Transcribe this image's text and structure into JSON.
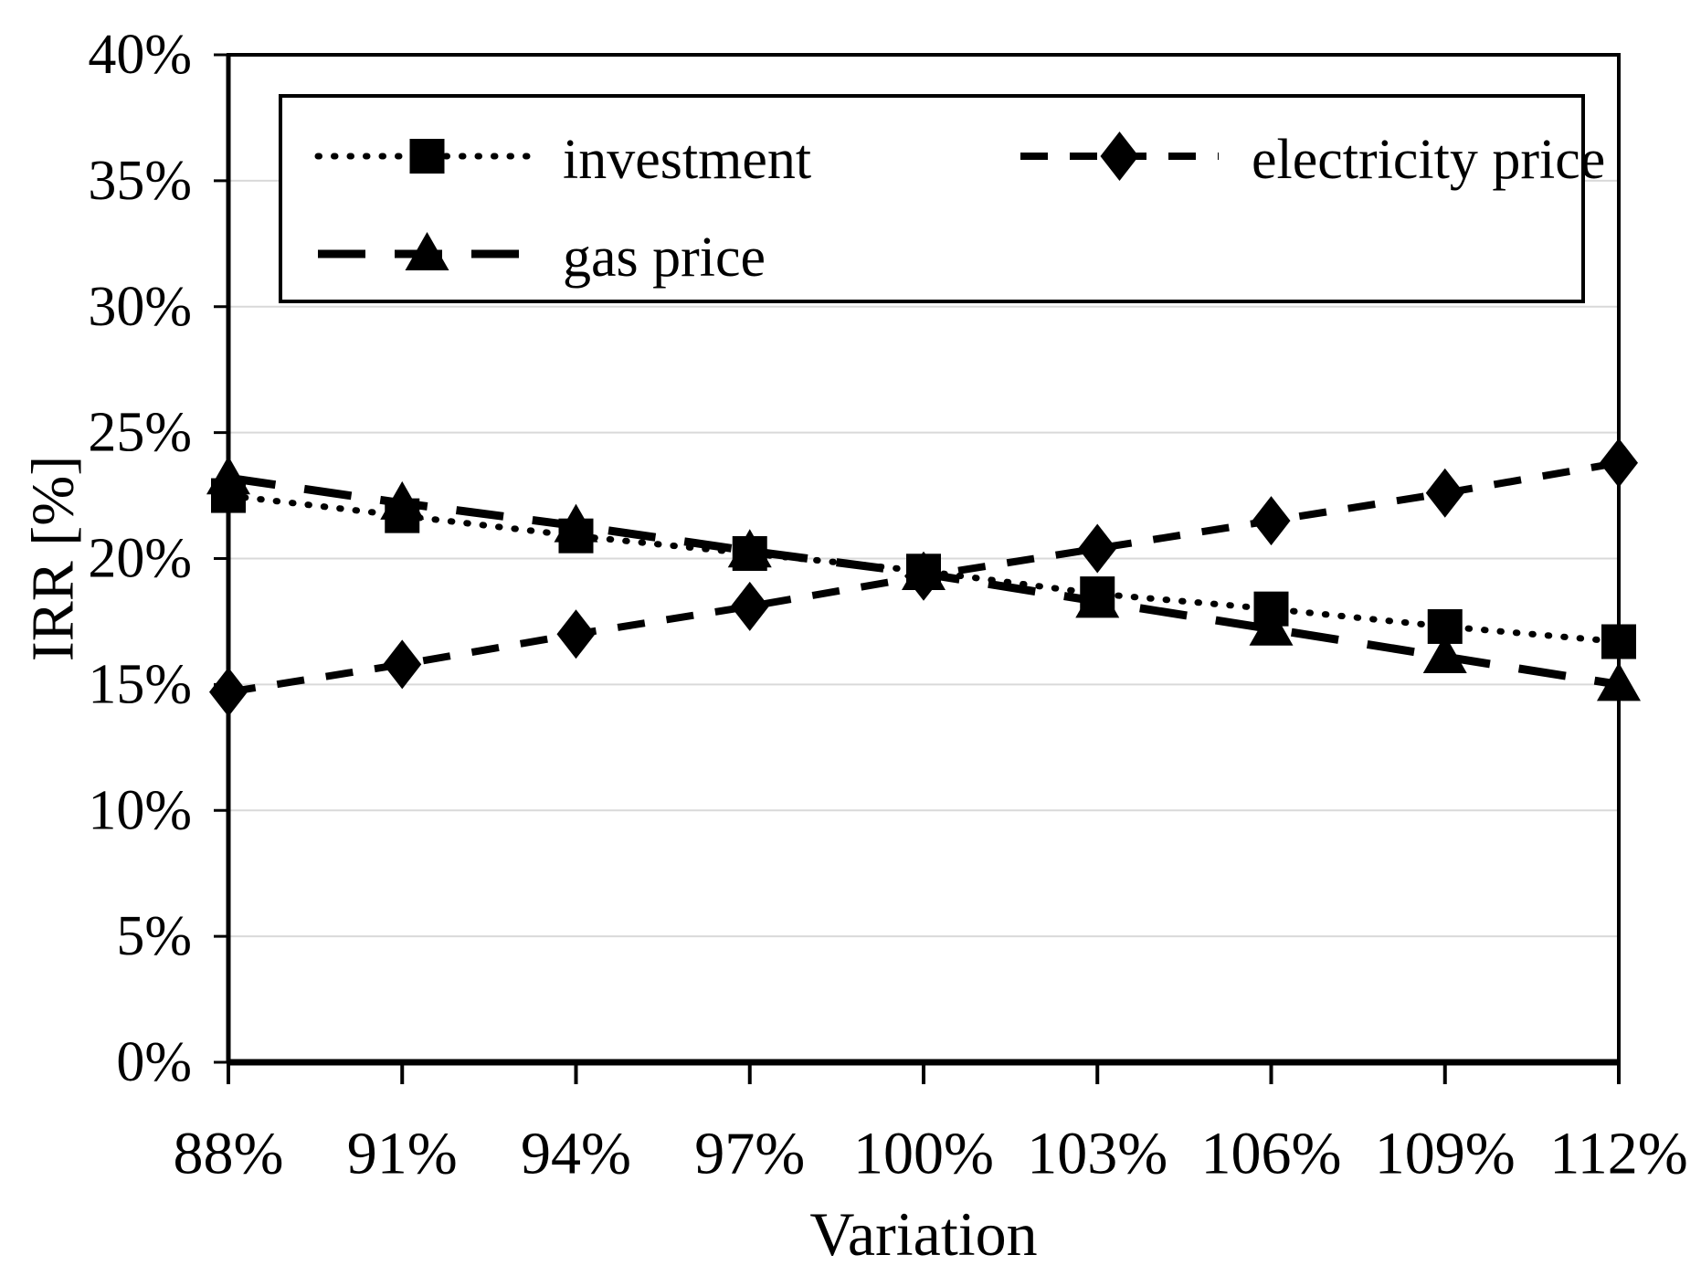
{
  "figure": {
    "background": "#ffffff",
    "description": "Sensitivity analysis line chart of IRR versus parameter variation"
  },
  "chart_data": {
    "type": "line",
    "title": "",
    "xlabel": "Variation",
    "ylabel": "IRR [%]",
    "categories": [
      "88%",
      "91%",
      "94%",
      "97%",
      "100%",
      "103%",
      "106%",
      "109%",
      "112%"
    ],
    "y_tick_labels": [
      "0%",
      "5%",
      "10%",
      "15%",
      "20%",
      "25%",
      "30%",
      "35%",
      "40%"
    ],
    "ylim": [
      0,
      40
    ],
    "y_tick_step": 5,
    "grid": "horizontal",
    "gridline_color": "#d9d9d9",
    "axis_color": "#000000",
    "legend_position": "top-inside-box",
    "legend_layout": [
      [
        "investment",
        "electricity price"
      ],
      [
        "gas price"
      ]
    ],
    "series": [
      {
        "name": "investment",
        "marker": "square",
        "line_style": "dotted",
        "color": "#000000",
        "values": [
          22.5,
          21.7,
          20.9,
          20.2,
          19.5,
          18.6,
          18.0,
          17.3,
          16.7
        ]
      },
      {
        "name": "electricity price",
        "marker": "diamond",
        "line_style": "dashed",
        "color": "#000000",
        "values": [
          14.7,
          15.8,
          17.0,
          18.1,
          19.3,
          20.4,
          21.5,
          22.6,
          23.8
        ]
      },
      {
        "name": "gas price",
        "marker": "triangle",
        "line_style": "long-dash",
        "color": "#000000",
        "values": [
          23.2,
          22.2,
          21.3,
          20.3,
          19.4,
          18.3,
          17.2,
          16.1,
          15.0
        ]
      }
    ]
  }
}
